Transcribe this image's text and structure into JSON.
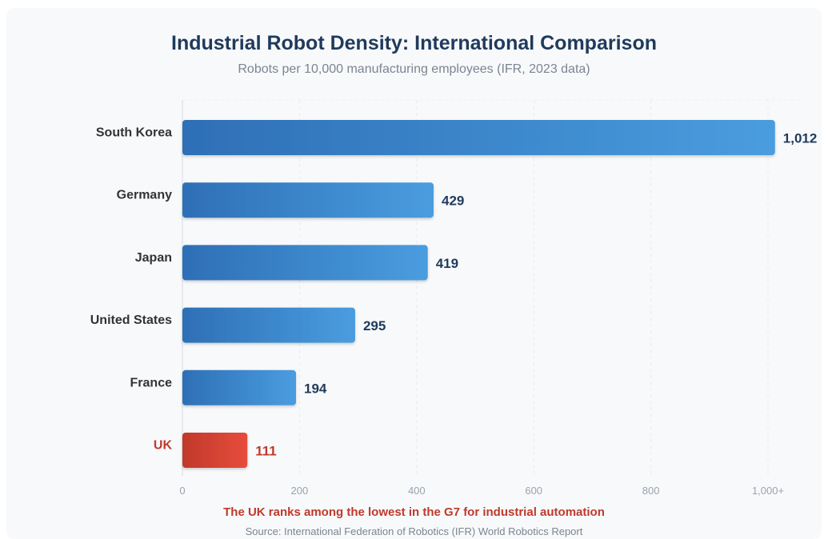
{
  "chart_data": {
    "type": "bar",
    "orientation": "horizontal",
    "title": "Industrial Robot Density: International Comparison",
    "subtitle": "Robots per 10,000 manufacturing employees (IFR, 2023 data)",
    "categories": [
      "South Korea",
      "Germany",
      "Japan",
      "United States",
      "France",
      "UK"
    ],
    "values": [
      1012,
      429,
      419,
      295,
      194,
      111
    ],
    "value_labels": [
      "1,012",
      "429",
      "419",
      "295",
      "194",
      "111"
    ],
    "highlight": [
      "UK"
    ],
    "xlim": [
      0,
      1000
    ],
    "xticks": [
      0,
      200,
      400,
      600,
      800,
      1000
    ],
    "xtick_labels": [
      "0",
      "200",
      "400",
      "600",
      "800",
      "1,000+"
    ],
    "grid": true,
    "legend": "none",
    "colors": {
      "bar_start": "#2e6fb6",
      "bar_end": "#4a9ddf",
      "highlight_start": "#c0392b",
      "highlight_end": "#e74c3c",
      "label": "#333333",
      "highlight_label": "#c0392b",
      "value_label": "#1f3a5c"
    }
  },
  "footer": {
    "note": "The UK ranks among the lowest in the G7 for industrial automation",
    "source": "Source: International Federation of Robotics (IFR) World Robotics Report"
  }
}
